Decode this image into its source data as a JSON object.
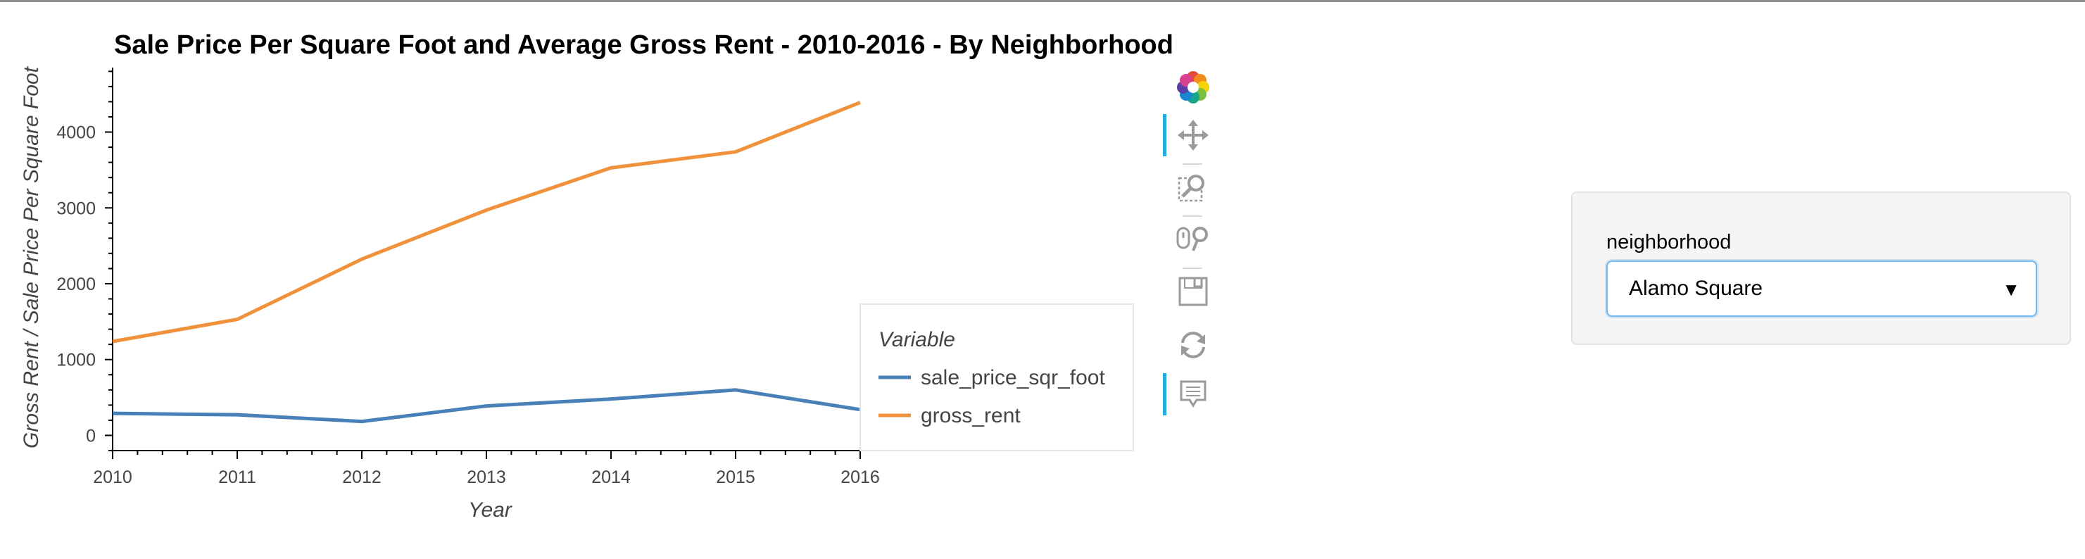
{
  "chart_data": {
    "type": "line",
    "title": "Sale Price Per Square Foot and Average Gross Rent - 2010-2016 - By Neighborhood",
    "xlabel": "Year",
    "ylabel": "Gross Rent / Sale Price Per Square Foot",
    "x": [
      2010,
      2011,
      2012,
      2013,
      2014,
      2015,
      2016
    ],
    "xlim": [
      2010,
      2016
    ],
    "ylim": [
      -200,
      4850
    ],
    "yticks": [
      0,
      1000,
      2000,
      3000,
      4000
    ],
    "xticks": [
      2010,
      2011,
      2012,
      2013,
      2014,
      2015,
      2016
    ],
    "grid": false,
    "legend": {
      "title": "Variable",
      "placement": "right"
    },
    "series": [
      {
        "name": "sale_price_sqr_foot",
        "color": "#4a80b8",
        "values": [
          291,
          272,
          184,
          388,
          480,
          600,
          340
        ]
      },
      {
        "name": "gross_rent",
        "color": "#f0923c",
        "values": [
          1239,
          1530,
          2324,
          2971,
          3528,
          3739,
          4390
        ]
      }
    ]
  },
  "toolbar": {
    "tools": [
      {
        "name": "bokeh-logo",
        "icon": "bokeh-logo-icon"
      },
      {
        "name": "pan",
        "icon": "pan-icon",
        "active": true
      },
      {
        "name": "box-zoom",
        "icon": "box-zoom-icon"
      },
      {
        "name": "wheel-zoom",
        "icon": "wheel-zoom-icon"
      },
      {
        "name": "save",
        "icon": "save-icon"
      },
      {
        "name": "reset",
        "icon": "reset-icon"
      },
      {
        "name": "hover",
        "icon": "hover-icon",
        "active": true
      }
    ]
  },
  "widget": {
    "label": "neighborhood",
    "selected": "Alamo Square",
    "caret": "▼",
    "focus_color": "#71b7f1"
  }
}
